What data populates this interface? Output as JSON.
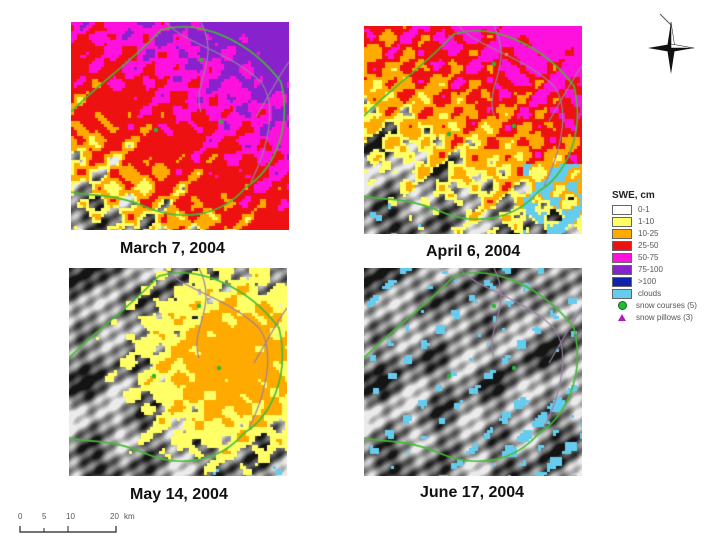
{
  "panels": [
    {
      "date": "March 7, 2004"
    },
    {
      "date": "April 6, 2004"
    },
    {
      "date": "May 14, 2004"
    },
    {
      "date": "June 17, 2004"
    }
  ],
  "legend": {
    "title": "SWE, cm",
    "classes": [
      {
        "label": "0-1",
        "color": "#ffffff"
      },
      {
        "label": "1-10",
        "color": "#ffff66"
      },
      {
        "label": "10-25",
        "color": "#ffaa00"
      },
      {
        "label": "25-50",
        "color": "#ee1111"
      },
      {
        "label": "50-75",
        "color": "#ff11dd"
      },
      {
        "label": "75-100",
        "color": "#8822cc"
      },
      {
        "label": ">100",
        "color": "#1122aa"
      },
      {
        "label": "clouds",
        "color": "#66ccee"
      }
    ],
    "points": [
      {
        "label": "snow courses (5)",
        "icon": "green-circle-icon"
      },
      {
        "label": "snow pillows (3)",
        "icon": "magenta-triangle-icon"
      }
    ]
  },
  "scale": {
    "ticks": [
      "0",
      "5",
      "10",
      "20"
    ],
    "unit": "km"
  },
  "colors": {
    "boundary": "#44bb33",
    "stream": "#9a7fa5"
  }
}
